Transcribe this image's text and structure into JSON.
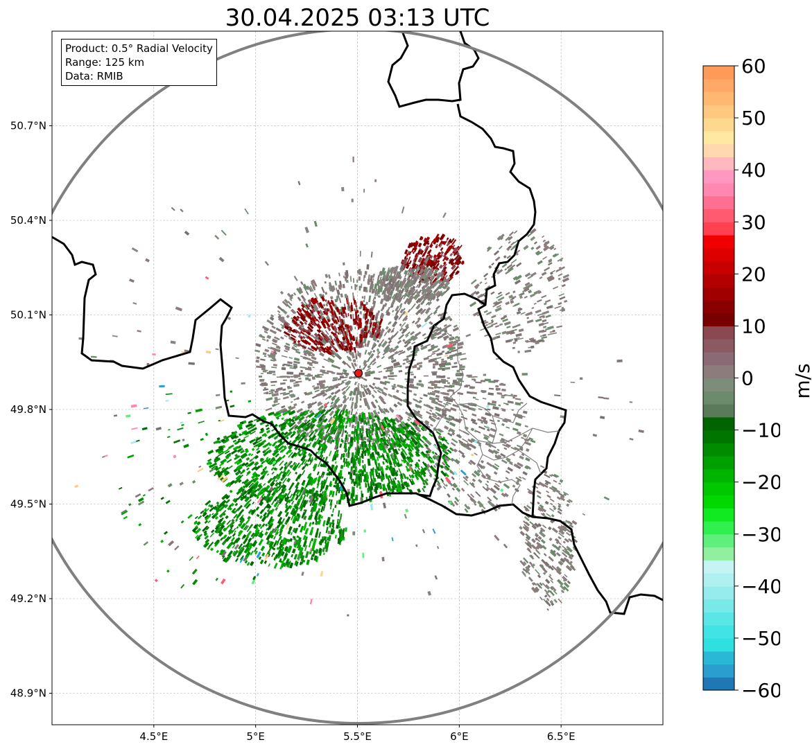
{
  "title": "30.04.2025 03:13 UTC",
  "info": {
    "product": "Product: 0.5° Radial Velocity",
    "range": "Range: 125 km",
    "data": "Data: RMIB"
  },
  "map": {
    "lon_range": [
      4.0,
      7.0
    ],
    "lat_range": [
      48.8,
      51.0
    ],
    "x_ticks": [
      {
        "label": "4.5°E",
        "value": 4.5
      },
      {
        "label": "5°E",
        "value": 5.0
      },
      {
        "label": "5.5°E",
        "value": 5.5
      },
      {
        "label": "6°E",
        "value": 6.0
      },
      {
        "label": "6.5°E",
        "value": 6.5
      }
    ],
    "y_ticks": [
      {
        "label": "50.7°N",
        "value": 50.7
      },
      {
        "label": "50.4°N",
        "value": 50.4
      },
      {
        "label": "50.1°N",
        "value": 50.1
      },
      {
        "label": "49.8°N",
        "value": 49.8
      },
      {
        "label": "49.5°N",
        "value": 49.5
      },
      {
        "label": "49.2°N",
        "value": 49.2
      },
      {
        "label": "48.9°N",
        "value": 48.9
      }
    ],
    "radar_site": {
      "lon": 5.505,
      "lat": 49.915,
      "color": "#e8191c"
    },
    "range_ring_color": "#808080",
    "border_color": "#000000",
    "gridlines": true
  },
  "colorbar": {
    "label": "m/s",
    "min": -60,
    "max": 60,
    "ticks": [
      "60",
      "50",
      "40",
      "30",
      "20",
      "10",
      "0",
      "−10",
      "−20",
      "−30",
      "−40",
      "−50",
      "−60"
    ],
    "colors": [
      "#1f78b4",
      "#2a9fcf",
      "#29b8d6",
      "#2ee0e0",
      "#40e4e4",
      "#5ae6e6",
      "#78e8e8",
      "#96ecec",
      "#b0f0f0",
      "#c4f4f4",
      "#90f0a0",
      "#5ef07a",
      "#30f050",
      "#10ea20",
      "#00d800",
      "#00c800",
      "#00b400",
      "#00a000",
      "#008c00",
      "#007600",
      "#006400",
      "#5a7a5a",
      "#6c8a6c",
      "#7e8c7a",
      "#8c7c7c",
      "#8a6a74",
      "#8c5862",
      "#8a4850",
      "#780000",
      "#8a0000",
      "#a00000",
      "#b40000",
      "#c80000",
      "#dc0000",
      "#f00000",
      "#ff4050",
      "#ff5a70",
      "#ff7090",
      "#ff88b0",
      "#ff98c0",
      "#ffb8c0",
      "#ffd8b0",
      "#ffe8a0",
      "#ffd890",
      "#ffc880",
      "#ffb870",
      "#ffa868",
      "#ff9a58"
    ]
  }
}
